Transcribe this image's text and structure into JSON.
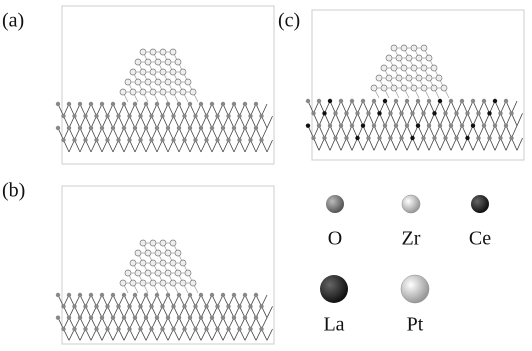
{
  "panels": [
    {
      "label": "(a)"
    },
    {
      "label": "(c)"
    },
    {
      "label": "(b)"
    }
  ],
  "legend": [
    {
      "label": "O"
    },
    {
      "label": "Zr"
    },
    {
      "label": "Ce"
    },
    {
      "label": "La"
    },
    {
      "label": "Pt"
    }
  ]
}
